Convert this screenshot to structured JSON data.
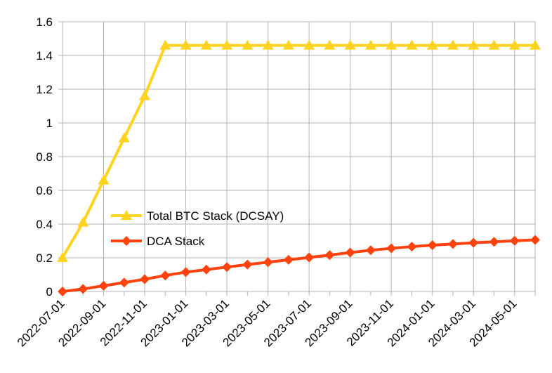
{
  "chart_data": {
    "type": "line",
    "title": "",
    "xlabel": "",
    "ylabel": "",
    "ylim": [
      0,
      1.6
    ],
    "y_ticks": [
      0,
      0.2,
      0.4,
      0.6,
      0.8,
      1,
      1.2,
      1.4,
      1.6
    ],
    "y_tick_labels": [
      "0",
      "0.2",
      "0.4",
      "0.6",
      "0.8",
      "1",
      "1.2",
      "1.4",
      "1.6"
    ],
    "grid": "horizontal",
    "legend_position": "center-left",
    "x": [
      "2022-07-01",
      "2022-08-01",
      "2022-09-01",
      "2022-10-01",
      "2022-11-01",
      "2022-12-01",
      "2023-01-01",
      "2023-02-01",
      "2023-03-01",
      "2023-04-01",
      "2023-05-01",
      "2023-06-01",
      "2023-07-01",
      "2023-08-01",
      "2023-09-01",
      "2023-10-01",
      "2023-11-01",
      "2023-12-01",
      "2024-01-01",
      "2024-02-01",
      "2024-03-01",
      "2024-04-01",
      "2024-05-01",
      "2024-06-01"
    ],
    "x_tick_labels": [
      "2022-07-01",
      "2022-09-01",
      "2022-11-01",
      "2023-01-01",
      "2023-03-01",
      "2023-05-01",
      "2023-07-01",
      "2023-09-01",
      "2023-11-01",
      "2024-01-01",
      "2024-03-01",
      "2024-05-01"
    ],
    "series": [
      {
        "name": "Total BTC Stack (DCSAY)",
        "color": "#ffd320",
        "marker": "triangle",
        "values": [
          0.2,
          0.41,
          0.66,
          0.91,
          1.16,
          1.46,
          1.46,
          1.46,
          1.46,
          1.46,
          1.46,
          1.46,
          1.46,
          1.46,
          1.46,
          1.46,
          1.46,
          1.46,
          1.46,
          1.46,
          1.46,
          1.46,
          1.46,
          1.46
        ]
      },
      {
        "name": "DCA Stack",
        "color": "#ff420e",
        "marker": "diamond",
        "values": [
          0.0,
          0.015,
          0.034,
          0.053,
          0.073,
          0.095,
          0.115,
          0.13,
          0.145,
          0.16,
          0.174,
          0.188,
          0.202,
          0.216,
          0.231,
          0.245,
          0.256,
          0.266,
          0.275,
          0.282,
          0.289,
          0.295,
          0.301,
          0.306
        ]
      }
    ]
  }
}
